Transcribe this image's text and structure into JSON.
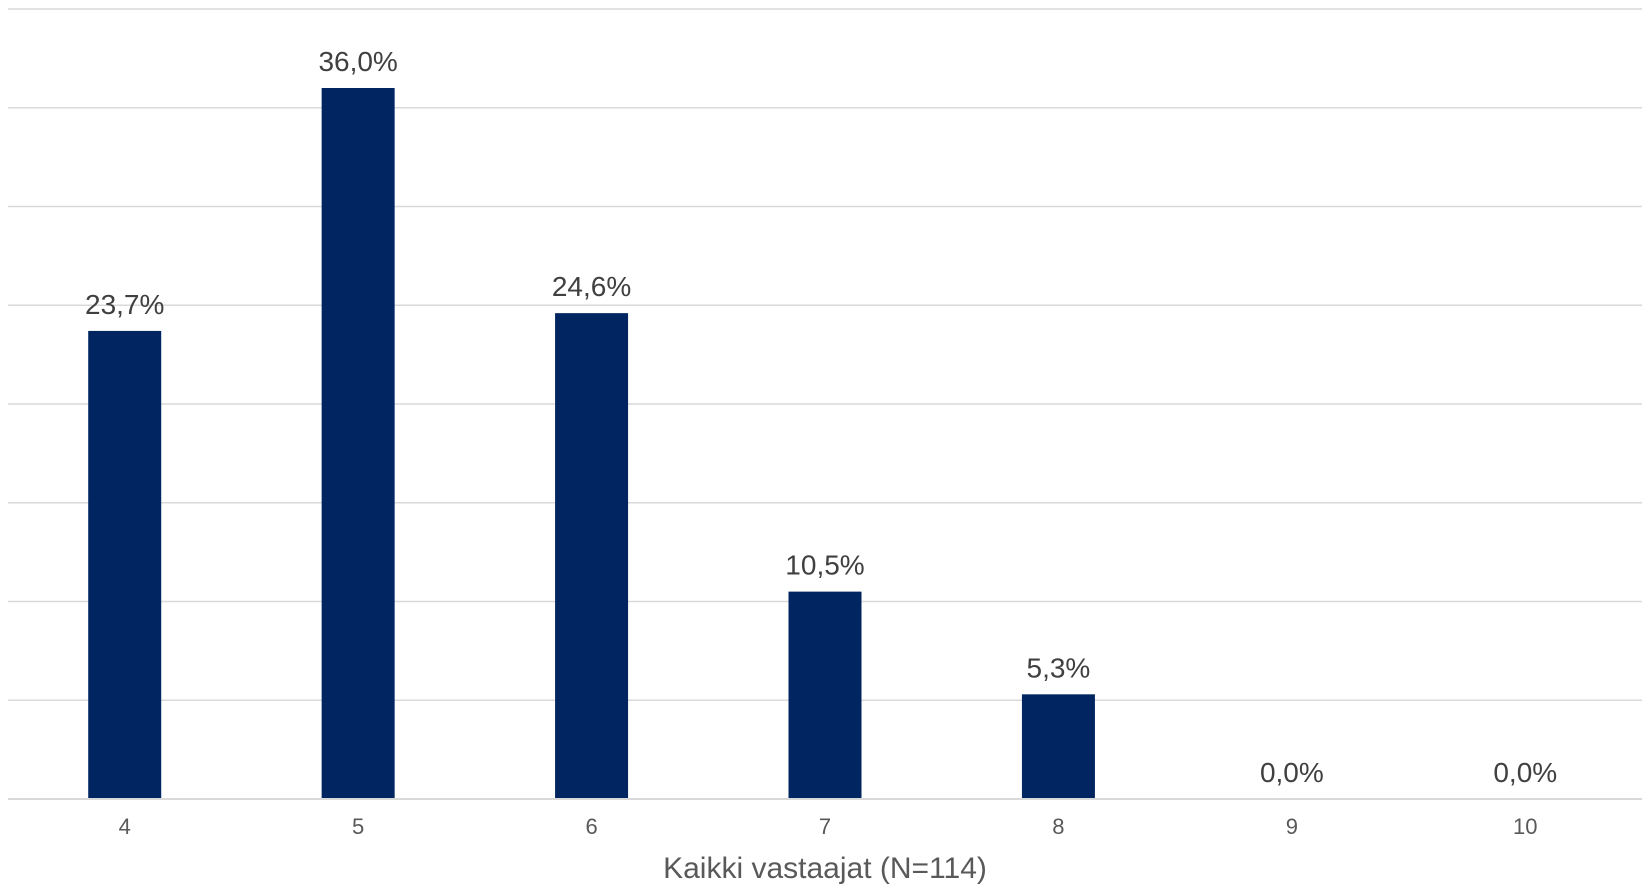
{
  "chart_data": {
    "type": "bar",
    "categories": [
      "4",
      "5",
      "6",
      "7",
      "8",
      "9",
      "10"
    ],
    "values": [
      23.7,
      36.0,
      24.6,
      10.5,
      5.3,
      0.0,
      0.0
    ],
    "data_labels": [
      "23,7%",
      "36,0%",
      "24,6%",
      "10,5%",
      "5,3%",
      "0,0%",
      "0,0%"
    ],
    "title": "",
    "xlabel": "Kaikki vastaajat (N=114)",
    "ylabel": "",
    "ylim": [
      0,
      40
    ],
    "grid": true,
    "legend": "none",
    "bar_color": "#002561"
  }
}
